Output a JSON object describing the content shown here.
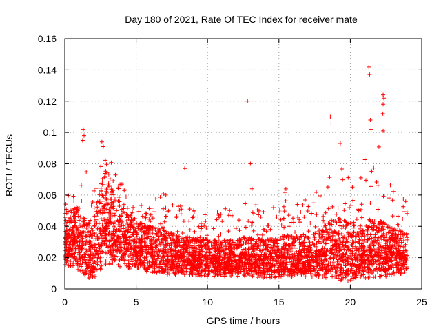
{
  "chart_data": {
    "type": "scatter",
    "title": "Day 180 of 2021, Rate Of TEC Index for receiver mate",
    "xlabel": "GPS time / hours",
    "ylabel": "ROTI / TECUs",
    "xlim": [
      0,
      25
    ],
    "ylim": [
      0,
      0.16
    ],
    "xticks": [
      0,
      5,
      10,
      15,
      20,
      25
    ],
    "xtick_labels": [
      "0",
      "5",
      "10",
      "15",
      "20",
      "25"
    ],
    "yticks": [
      0,
      0.02,
      0.04,
      0.06,
      0.08,
      0.1,
      0.12,
      0.14,
      0.16
    ],
    "ytick_labels": [
      "0",
      "0.02",
      "0.04",
      "0.06",
      "0.08",
      "0.1",
      "0.12",
      "0.14",
      "0.16"
    ],
    "grid": true,
    "marker": "+",
    "series": [
      {
        "name": "ROTI",
        "color": "#ff0000",
        "profile": {
          "description": "approximate envelope of dense scatter (hour, low, median, high)",
          "hours": [
            0,
            0.5,
            1,
            1.5,
            2,
            2.5,
            3,
            3.5,
            4,
            4.5,
            5,
            5.5,
            6,
            6.5,
            7,
            7.5,
            8,
            8.5,
            9,
            9.5,
            10,
            10.5,
            11,
            11.5,
            12,
            12.5,
            13,
            13.5,
            14,
            14.5,
            15,
            15.5,
            16,
            16.5,
            17,
            17.5,
            18,
            18.5,
            19,
            19.5,
            20,
            20.5,
            21,
            21.5,
            22,
            22.5,
            23,
            23.5,
            24
          ],
          "low": [
            0.015,
            0.014,
            0.012,
            0.008,
            0.005,
            0.012,
            0.016,
            0.015,
            0.013,
            0.012,
            0.011,
            0.011,
            0.01,
            0.01,
            0.009,
            0.009,
            0.009,
            0.009,
            0.009,
            0.008,
            0.008,
            0.008,
            0.008,
            0.008,
            0.008,
            0.008,
            0.008,
            0.007,
            0.007,
            0.007,
            0.007,
            0.007,
            0.007,
            0.007,
            0.007,
            0.007,
            0.007,
            0.007,
            0.006,
            0.005,
            0.005,
            0.006,
            0.007,
            0.007,
            0.008,
            0.008,
            0.009,
            0.009,
            0.01
          ],
          "median": [
            0.035,
            0.036,
            0.034,
            0.028,
            0.025,
            0.045,
            0.05,
            0.04,
            0.035,
            0.032,
            0.03,
            0.028,
            0.027,
            0.026,
            0.025,
            0.024,
            0.023,
            0.023,
            0.022,
            0.022,
            0.021,
            0.021,
            0.021,
            0.021,
            0.021,
            0.022,
            0.022,
            0.021,
            0.021,
            0.021,
            0.022,
            0.022,
            0.022,
            0.022,
            0.022,
            0.023,
            0.025,
            0.027,
            0.028,
            0.027,
            0.026,
            0.026,
            0.027,
            0.028,
            0.028,
            0.027,
            0.026,
            0.025,
            0.024
          ],
          "high": [
            0.06,
            0.065,
            0.07,
            0.075,
            0.062,
            0.085,
            0.088,
            0.075,
            0.07,
            0.065,
            0.06,
            0.058,
            0.057,
            0.06,
            0.062,
            0.055,
            0.058,
            0.06,
            0.057,
            0.052,
            0.05,
            0.055,
            0.054,
            0.052,
            0.05,
            0.06,
            0.068,
            0.055,
            0.052,
            0.055,
            0.06,
            0.065,
            0.058,
            0.06,
            0.058,
            0.065,
            0.075,
            0.085,
            0.09,
            0.075,
            0.07,
            0.072,
            0.085,
            0.09,
            0.095,
            0.08,
            0.065,
            0.06,
            0.058
          ]
        },
        "notable_points": [
          {
            "x": 1.3,
            "y": 0.102
          },
          {
            "x": 1.35,
            "y": 0.098
          },
          {
            "x": 1.25,
            "y": 0.095
          },
          {
            "x": 2.6,
            "y": 0.094
          },
          {
            "x": 2.7,
            "y": 0.091
          },
          {
            "x": 12.8,
            "y": 0.12
          },
          {
            "x": 18.6,
            "y": 0.11
          },
          {
            "x": 18.65,
            "y": 0.106
          },
          {
            "x": 19.3,
            "y": 0.093
          },
          {
            "x": 21.3,
            "y": 0.142
          },
          {
            "x": 21.35,
            "y": 0.137
          },
          {
            "x": 21.4,
            "y": 0.108
          },
          {
            "x": 21.45,
            "y": 0.102
          },
          {
            "x": 22.3,
            "y": 0.124
          },
          {
            "x": 22.35,
            "y": 0.122
          },
          {
            "x": 22.3,
            "y": 0.118
          },
          {
            "x": 22.28,
            "y": 0.112
          },
          {
            "x": 22.3,
            "y": 0.101
          },
          {
            "x": 8.4,
            "y": 0.077
          },
          {
            "x": 13.0,
            "y": 0.08
          }
        ]
      }
    ]
  }
}
